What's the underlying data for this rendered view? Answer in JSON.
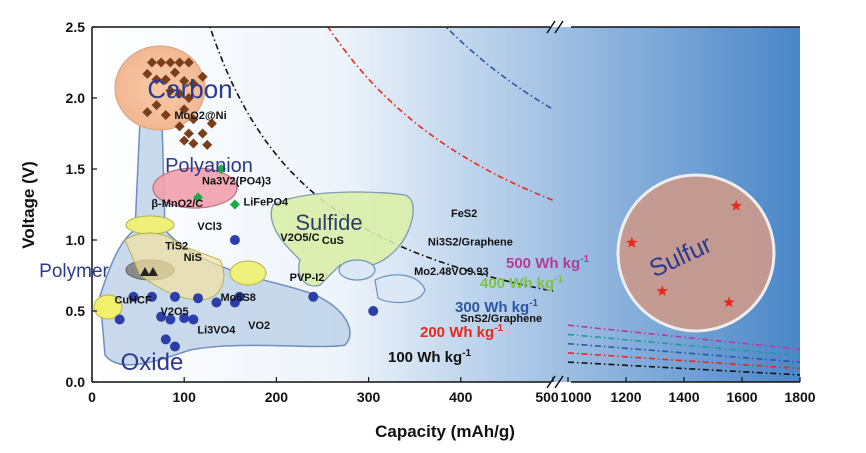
{
  "chart_data": {
    "type": "scatter",
    "title": "",
    "xlabel": "Capacity (mAh/g)",
    "ylabel": "Voltage (V)",
    "ylim": [
      0,
      2.5
    ],
    "yticks": [
      "0.0",
      "0.5",
      "1.0",
      "1.5",
      "2.0",
      "2.5"
    ],
    "x_axis_segments": [
      {
        "range": [
          0,
          500
        ],
        "ticks": [
          "0",
          "100",
          "200",
          "300",
          "400",
          "500"
        ]
      },
      {
        "range": [
          1000,
          1800
        ],
        "ticks": [
          "1000",
          "1200",
          "1400",
          "1600",
          "1800"
        ]
      }
    ],
    "x_axis_break": "//",
    "colors": {
      "background_gradient": [
        "#ffffff",
        "#4a86c8"
      ],
      "carbon": "#f2b48e",
      "polyanion": "#f2a0ad",
      "sulfide": "#d9eea8",
      "sulfur": "#c79a8e",
      "oxide": "#b8cde6",
      "polymer": "#8a8a8a",
      "vcl3": "#f0ef7a",
      "pvp": "#eef27a",
      "cuhcf": "#f3ef6e"
    },
    "energy_curves": [
      {
        "label": "100 Wh kg",
        "exp": "-1",
        "wh": 100,
        "color": "#111111"
      },
      {
        "label": "200 Wh kg",
        "exp": "-1",
        "wh": 200,
        "color": "#e8291c"
      },
      {
        "label": "300 Wh kg",
        "exp": "-1",
        "wh": 300,
        "color": "#2b58a5"
      },
      {
        "label": "400 Wh kg",
        "exp": "-1",
        "wh": 400,
        "color": "#7dc242"
      },
      {
        "label": "500 Wh kg",
        "exp": "-1",
        "wh": 500,
        "color": "#b43c92"
      }
    ],
    "break_curve_colors": [
      "#111111",
      "#e8291c",
      "#2b58a5",
      "#1a9e98",
      "#b43c92"
    ],
    "dashed_curve_colors": [
      "#111111",
      "#e8291c",
      "#2b58a5",
      "#1a9e98",
      "#b43c92"
    ],
    "group_labels": [
      "Carbon",
      "Polyanion",
      "Sulfide",
      "Polymer",
      "Oxide",
      "Sulfur"
    ],
    "series": [
      {
        "name": "Carbon",
        "marker": "diamond",
        "color": "#7a3e1a",
        "points": [
          [
            65,
            2.25
          ],
          [
            75,
            2.25
          ],
          [
            85,
            2.25
          ],
          [
            95,
            2.25
          ],
          [
            105,
            2.25
          ],
          [
            60,
            2.17
          ],
          [
            70,
            2.13
          ],
          [
            80,
            2.13
          ],
          [
            90,
            2.18
          ],
          [
            100,
            2.12
          ],
          [
            110,
            2.1
          ],
          [
            120,
            2.15
          ],
          [
            85,
            2.05
          ],
          [
            95,
            2.03
          ],
          [
            105,
            2.0
          ],
          [
            70,
            1.95
          ],
          [
            60,
            1.9
          ],
          [
            80,
            1.88
          ],
          [
            100,
            1.92
          ],
          [
            110,
            1.85
          ],
          [
            95,
            1.8
          ],
          [
            105,
            1.75
          ],
          [
            120,
            1.75
          ],
          [
            130,
            1.82
          ],
          [
            100,
            1.7
          ],
          [
            110,
            1.68
          ],
          [
            125,
            1.67
          ]
        ]
      },
      {
        "name": "Oxide",
        "marker": "circle",
        "color": "#2c3ea8",
        "points": [
          [
            30,
            0.44
          ],
          [
            45,
            0.6
          ],
          [
            65,
            0.6
          ],
          [
            75,
            0.46
          ],
          [
            85,
            0.44
          ],
          [
            90,
            0.6
          ],
          [
            100,
            0.45
          ],
          [
            110,
            0.44
          ],
          [
            115,
            0.59
          ],
          [
            135,
            0.56
          ],
          [
            155,
            0.56
          ],
          [
            160,
            0.6
          ],
          [
            90,
            0.25
          ],
          [
            155,
            1.0
          ],
          [
            240,
            0.6
          ],
          [
            305,
            0.5
          ],
          [
            80,
            0.3
          ]
        ]
      },
      {
        "name": "Polyanion",
        "marker": "diamond",
        "color": "#1fa94a",
        "points": [
          [
            115,
            1.3
          ],
          [
            140,
            1.5
          ],
          [
            155,
            1.25
          ]
        ]
      }
    ],
    "annotations": [
      {
        "text": "MoO2@Ni",
        "x": 85,
        "y": 1.88
      },
      {
        "text": "Na3V2(PO4)3",
        "x": 115,
        "y": 1.42
      },
      {
        "text": "LiFePO4",
        "x": 160,
        "y": 1.27
      },
      {
        "text": "β-MnO2/C",
        "x": 60,
        "y": 1.26
      },
      {
        "text": "VCl3",
        "x": 110,
        "y": 1.1
      },
      {
        "text": "TiS2",
        "x": 75,
        "y": 0.96
      },
      {
        "text": "NiS",
        "x": 95,
        "y": 0.88
      },
      {
        "text": "V2O5/C",
        "x": 200,
        "y": 1.02
      },
      {
        "text": "CuS",
        "x": 245,
        "y": 1.0
      },
      {
        "text": "FeS2",
        "x": 385,
        "y": 1.19
      },
      {
        "text": "Ni3S2/Graphene",
        "x": 360,
        "y": 0.99
      },
      {
        "text": "Mo2.48VO9.93",
        "x": 345,
        "y": 0.78
      },
      {
        "text": "PVP-I2",
        "x": 210,
        "y": 0.74
      },
      {
        "text": "Mo6S8",
        "x": 135,
        "y": 0.6
      },
      {
        "text": "CuHCF",
        "x": 20,
        "y": 0.58
      },
      {
        "text": "V2O5",
        "x": 70,
        "y": 0.5
      },
      {
        "text": "Li3VO4",
        "x": 110,
        "y": 0.37
      },
      {
        "text": "VO2",
        "x": 165,
        "y": 0.4
      },
      {
        "text": "SnS2/Graphene",
        "x": 395,
        "y": 0.45
      },
      {
        "text": "Sulfur",
        "x": 1400,
        "y": 1.0
      }
    ]
  }
}
